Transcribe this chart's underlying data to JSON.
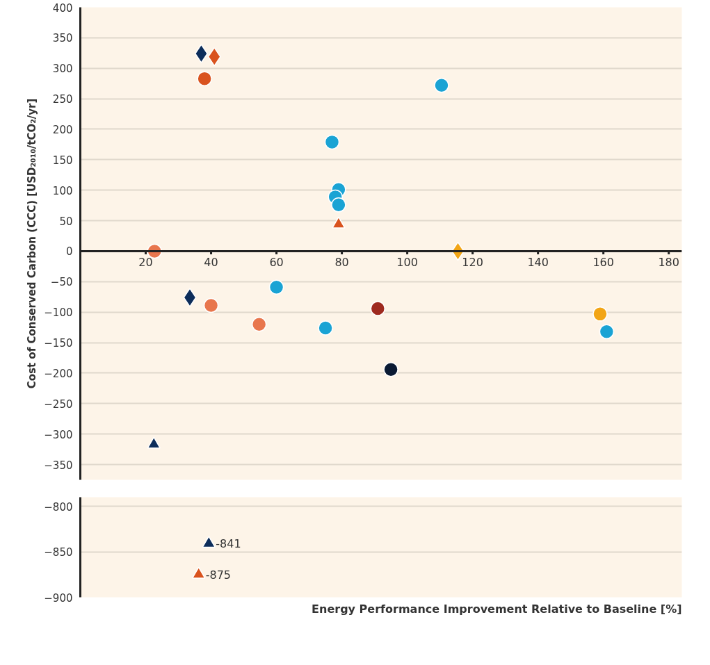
{
  "chart_data": [
    {
      "type": "scatter",
      "ylabel": "Cost of Conserved Carbon (CCC) [USD₂₀₁₀/tCO₂/yr]",
      "xlim": [
        0,
        184
      ],
      "xticks": [
        20,
        40,
        60,
        80,
        100,
        120,
        140,
        160,
        180
      ],
      "ylim": [
        -375,
        400
      ],
      "yticks": [
        -350,
        -300,
        -250,
        -200,
        -150,
        -100,
        -50,
        0,
        50,
        100,
        150,
        200,
        250,
        300,
        350,
        400
      ],
      "grid": "y",
      "series": [
        {
          "color": "#0d2d5a",
          "marker": "diamond",
          "x": [
            37,
            33.5
          ],
          "values": [
            324,
            -76
          ]
        },
        {
          "color": "#d9531e",
          "marker": "diamond",
          "x": [
            41
          ],
          "values": [
            319
          ]
        },
        {
          "color": "#d9531e",
          "marker": "circle",
          "x": [
            38
          ],
          "values": [
            283
          ]
        },
        {
          "color": "#1aa3d4",
          "marker": "circle",
          "x": [
            110.5,
            77,
            79,
            78,
            79,
            60,
            75,
            161
          ],
          "values": [
            272,
            179,
            101,
            89,
            76,
            -59,
            -126,
            -132
          ]
        },
        {
          "color": "#d9531e",
          "marker": "triangle",
          "x": [
            79
          ],
          "values": [
            44
          ]
        },
        {
          "color": "#e8764d",
          "marker": "circle",
          "x": [
            22.7,
            40,
            54.7
          ],
          "values": [
            0,
            -89,
            -120
          ]
        },
        {
          "color": "#f2a516",
          "marker": "diamond",
          "x": [
            115.5
          ],
          "values": [
            0
          ]
        },
        {
          "color": "#f2a516",
          "marker": "circle",
          "x": [
            159
          ],
          "values": [
            -103
          ]
        },
        {
          "color": "#9e2a1f",
          "marker": "circle",
          "x": [
            91
          ],
          "values": [
            -94
          ]
        },
        {
          "color": "#0a1a33",
          "marker": "circle",
          "x": [
            95
          ],
          "values": [
            -194
          ]
        },
        {
          "color": "#0d2d5a",
          "marker": "triangle",
          "x": [
            22.5
          ],
          "values": [
            -317
          ]
        }
      ]
    },
    {
      "type": "scatter",
      "xlabel": "Energy Performance Improvement Relative to Baseline [%]",
      "xlim": [
        0,
        184
      ],
      "ylim": [
        -900,
        -790
      ],
      "yticks": [
        -900,
        -850,
        -800
      ],
      "grid": "y",
      "tick_labels": "y",
      "series": [
        {
          "color": "#0d2d5a",
          "marker": "triangle",
          "x": [
            39.3
          ],
          "values": [
            -841
          ],
          "value_labels": [
            "-841"
          ]
        },
        {
          "color": "#d9531e",
          "marker": "triangle",
          "x": [
            36.2
          ],
          "values": [
            -875
          ],
          "value_labels": [
            "-875"
          ]
        }
      ]
    }
  ]
}
